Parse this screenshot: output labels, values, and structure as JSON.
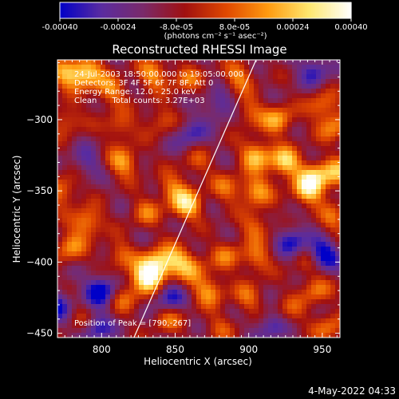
{
  "chart_data": {
    "type": "heatmap",
    "title": "Reconstructed RHESSI Image",
    "xlabel": "Heliocentric X (arcsec)",
    "ylabel": "Heliocentric Y (arcsec)",
    "xlim": [
      770,
      962
    ],
    "ylim": [
      -453,
      -258
    ],
    "x_ticks": [
      "800",
      "850",
      "900",
      "950"
    ],
    "x_tick_values": [
      800,
      850,
      900,
      950
    ],
    "y_ticks": [
      "-300",
      "-350",
      "-400",
      "-450"
    ],
    "y_tick_values": [
      -300,
      -350,
      -400,
      -450
    ],
    "colorbar": {
      "range": [
        -0.0004,
        0.0004
      ],
      "tick_labels": [
        "-0.00040",
        "-0.00024",
        "-8.0e-05",
        "8.0e-05",
        "0.00024",
        "0.00040"
      ],
      "tick_values": [
        -0.0004,
        -0.00024,
        -8e-05,
        8e-05,
        0.00024,
        0.0004
      ],
      "unit_label": "(photons cm⁻² s⁻¹ asec⁻²)",
      "colors": [
        "#0000c8",
        "#5a2ca0",
        "#7a2a6a",
        "#a01010",
        "#e04800",
        "#ff9a10",
        "#ffe870",
        "#ffffff"
      ]
    },
    "annotations": [
      "24-Jul-2003 18:50:00.000 to 19:05:00.000",
      "Detectors: 3F 4F 5F 6F 7F 8F, Att 0",
      "Energy Range: 12.0 - 25.0 keV",
      "Clean      Total counts: 3.27E+03"
    ],
    "peak_label": "Position of Peak = [790,-267]",
    "limb_line": [
      [
        822,
        -453
      ],
      [
        905,
        -258
      ]
    ],
    "hot_spots": [
      {
        "x": 776,
        "y": -268,
        "v": 0.0003
      },
      {
        "x": 790,
        "y": -267,
        "v": 0.00038
      },
      {
        "x": 806,
        "y": -280,
        "v": 0.00025
      },
      {
        "x": 835,
        "y": -268,
        "v": 0.00028
      },
      {
        "x": 858,
        "y": -272,
        "v": 0.0002
      },
      {
        "x": 776,
        "y": -300,
        "v": 0.0002
      },
      {
        "x": 812,
        "y": -305,
        "v": 0.0002
      },
      {
        "x": 840,
        "y": -300,
        "v": 0.00018
      },
      {
        "x": 815,
        "y": -330,
        "v": 0.0003
      },
      {
        "x": 773,
        "y": -350,
        "v": 0.00025
      },
      {
        "x": 790,
        "y": -372,
        "v": 0.0003
      },
      {
        "x": 778,
        "y": -390,
        "v": 0.00025
      },
      {
        "x": 830,
        "y": -365,
        "v": 0.0002
      },
      {
        "x": 848,
        "y": -348,
        "v": 0.00022
      },
      {
        "x": 858,
        "y": -360,
        "v": 0.00038
      },
      {
        "x": 865,
        "y": -330,
        "v": 0.00015
      },
      {
        "x": 812,
        "y": -395,
        "v": 0.0002
      },
      {
        "x": 840,
        "y": -400,
        "v": 0.00022
      },
      {
        "x": 852,
        "y": -398,
        "v": 0.00025
      },
      {
        "x": 862,
        "y": -405,
        "v": 0.0002
      },
      {
        "x": 830,
        "y": -412,
        "v": 0.00038
      },
      {
        "x": 835,
        "y": -405,
        "v": 0.00028
      },
      {
        "x": 873,
        "y": -420,
        "v": 0.00028
      },
      {
        "x": 815,
        "y": -425,
        "v": 0.0002
      },
      {
        "x": 788,
        "y": -440,
        "v": 0.00018
      },
      {
        "x": 845,
        "y": -440,
        "v": 0.0002
      },
      {
        "x": 893,
        "y": -270,
        "v": 0.00025
      },
      {
        "x": 900,
        "y": -295,
        "v": 0.0002
      },
      {
        "x": 920,
        "y": -300,
        "v": 0.0003
      },
      {
        "x": 950,
        "y": -290,
        "v": 0.00022
      },
      {
        "x": 958,
        "y": -305,
        "v": 0.00025
      },
      {
        "x": 905,
        "y": -325,
        "v": 0.00035
      },
      {
        "x": 925,
        "y": -330,
        "v": 0.00038
      },
      {
        "x": 945,
        "y": -340,
        "v": 0.0003
      },
      {
        "x": 940,
        "y": -350,
        "v": 0.00035
      },
      {
        "x": 905,
        "y": -350,
        "v": 0.0003
      },
      {
        "x": 885,
        "y": -348,
        "v": 0.0002
      },
      {
        "x": 960,
        "y": -338,
        "v": 0.0003
      },
      {
        "x": 958,
        "y": -370,
        "v": 0.0002
      },
      {
        "x": 905,
        "y": -375,
        "v": 0.00022
      },
      {
        "x": 885,
        "y": -395,
        "v": 0.0002
      },
      {
        "x": 905,
        "y": -398,
        "v": 0.00022
      },
      {
        "x": 940,
        "y": -400,
        "v": 0.00015
      },
      {
        "x": 900,
        "y": -425,
        "v": 0.0002
      },
      {
        "x": 945,
        "y": -420,
        "v": 0.00022
      },
      {
        "x": 928,
        "y": -435,
        "v": 0.00015
      },
      {
        "x": 955,
        "y": -446,
        "v": 0.00022
      },
      {
        "x": 880,
        "y": -446,
        "v": 0.00015
      },
      {
        "x": 790,
        "y": -330,
        "v": -0.00015
      },
      {
        "x": 800,
        "y": -420,
        "v": -0.00035
      },
      {
        "x": 795,
        "y": -445,
        "v": -0.0003
      },
      {
        "x": 770,
        "y": -430,
        "v": -0.00025
      },
      {
        "x": 845,
        "y": -425,
        "v": -0.00025
      },
      {
        "x": 860,
        "y": -310,
        "v": -0.0002
      },
      {
        "x": 950,
        "y": -395,
        "v": -0.00035
      },
      {
        "x": 930,
        "y": -385,
        "v": -0.00025
      },
      {
        "x": 945,
        "y": -265,
        "v": -0.00022
      },
      {
        "x": 880,
        "y": -290,
        "v": -0.0002
      },
      {
        "x": 915,
        "y": -445,
        "v": -0.0002
      }
    ]
  },
  "footer": {
    "date_stamp": "4-May-2022 04:33"
  }
}
